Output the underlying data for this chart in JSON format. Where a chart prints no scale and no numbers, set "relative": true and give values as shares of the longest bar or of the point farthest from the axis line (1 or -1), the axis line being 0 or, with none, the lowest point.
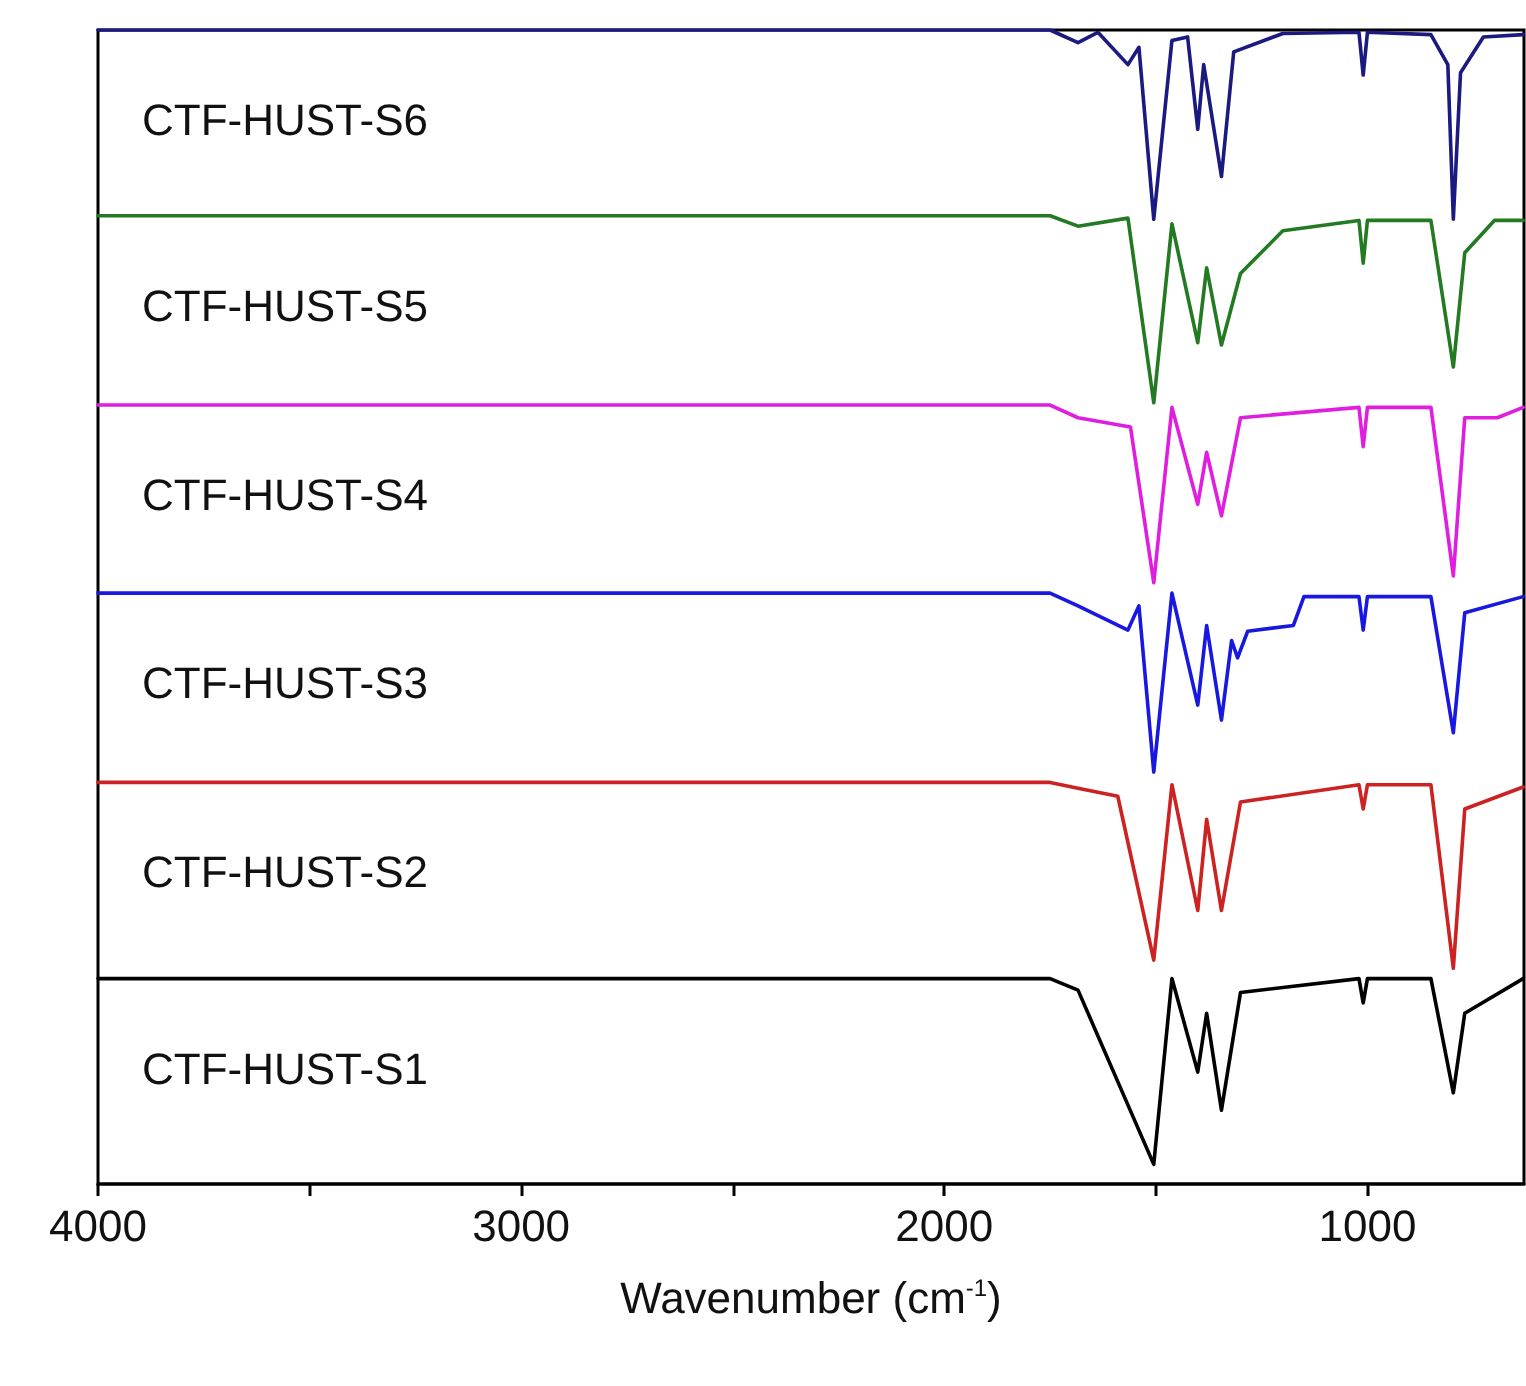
{
  "chart_data": {
    "type": "line",
    "xlabel": "Wavenumber (cm$^{-1}$)",
    "relative": true,
    "xlim": [
      4000,
      630
    ],
    "xticks": [
      4000,
      {
        "value": 3500,
        "label": null
      },
      3000,
      {
        "value": 2500,
        "label": null
      },
      2000,
      {
        "value": 1500,
        "label": null
      },
      1000
    ],
    "grid": false,
    "legend": false,
    "marker": "none",
    "line_style": "solid",
    "series": [
      {
        "name": "CTF-HUST-S6",
        "color": "#1a1a80",
        "x": [
          4000,
          1750,
          1684,
          1637,
          1566,
          1540,
          1505,
          1462,
          1425,
          1401,
          1387,
          1345,
          1316,
          1200,
          1020,
          1010,
          1000,
          850,
          810,
          797,
          780,
          726,
          632
        ],
        "values": [
          1.0,
          1.0,
          0.989,
          0.998,
          0.97,
          0.985,
          0.836,
          0.991,
          0.994,
          0.914,
          0.97,
          0.873,
          0.981,
          0.997,
          0.998,
          0.961,
          0.998,
          0.996,
          0.97,
          0.836,
          0.963,
          0.994,
          0.996
        ]
      },
      {
        "name": "CTF-HUST-S5",
        "color": "#237a23",
        "x": [
          4000,
          1750,
          1684,
          1566,
          1505,
          1462,
          1401,
          1380,
          1345,
          1300,
          1200,
          1020,
          1010,
          1000,
          850,
          797,
          770,
          700,
          632
        ],
        "values": [
          0.839,
          0.839,
          0.83,
          0.837,
          0.677,
          0.832,
          0.729,
          0.794,
          0.727,
          0.789,
          0.826,
          0.835,
          0.798,
          0.835,
          0.835,
          0.708,
          0.807,
          0.835,
          0.835
        ]
      },
      {
        "name": "CTF-HUST-S4",
        "color": "#e01ee0",
        "x": [
          4000,
          1750,
          1684,
          1560,
          1505,
          1462,
          1401,
          1380,
          1345,
          1300,
          1020,
          1010,
          1000,
          850,
          797,
          770,
          693,
          632
        ],
        "values": [
          0.675,
          0.675,
          0.664,
          0.656,
          0.521,
          0.673,
          0.589,
          0.634,
          0.579,
          0.664,
          0.673,
          0.639,
          0.673,
          0.673,
          0.527,
          0.664,
          0.664,
          0.673
        ]
      },
      {
        "name": "CTF-HUST-S3",
        "color": "#1818e0",
        "x": [
          4000,
          1750,
          1684,
          1566,
          1540,
          1505,
          1462,
          1401,
          1380,
          1345,
          1321,
          1307,
          1283,
          1175,
          1150,
          1020,
          1010,
          1000,
          850,
          797,
          770,
          632
        ],
        "values": [
          0.512,
          0.512,
          0.501,
          0.48,
          0.501,
          0.357,
          0.512,
          0.415,
          0.484,
          0.402,
          0.471,
          0.456,
          0.479,
          0.484,
          0.509,
          0.509,
          0.48,
          0.509,
          0.509,
          0.391,
          0.495,
          0.509
        ]
      },
      {
        "name": "CTF-HUST-S2",
        "color": "#cc2222",
        "x": [
          4000,
          1750,
          1684,
          1590,
          1505,
          1462,
          1401,
          1380,
          1345,
          1300,
          1020,
          1010,
          1000,
          850,
          797,
          770,
          632
        ],
        "values": [
          0.348,
          0.348,
          0.343,
          0.336,
          0.194,
          0.346,
          0.237,
          0.316,
          0.237,
          0.331,
          0.346,
          0.325,
          0.346,
          0.346,
          0.187,
          0.325,
          0.344
        ]
      },
      {
        "name": "CTF-HUST-S1",
        "color": "#000000",
        "x": [
          4000,
          1750,
          1684,
          1505,
          1462,
          1401,
          1380,
          1345,
          1300,
          1020,
          1010,
          1000,
          850,
          797,
          770,
          632
        ],
        "values": [
          0.178,
          0.178,
          0.168,
          0.017,
          0.178,
          0.097,
          0.148,
          0.064,
          0.166,
          0.178,
          0.157,
          0.178,
          0.178,
          0.079,
          0.148,
          0.178
        ]
      }
    ]
  }
}
